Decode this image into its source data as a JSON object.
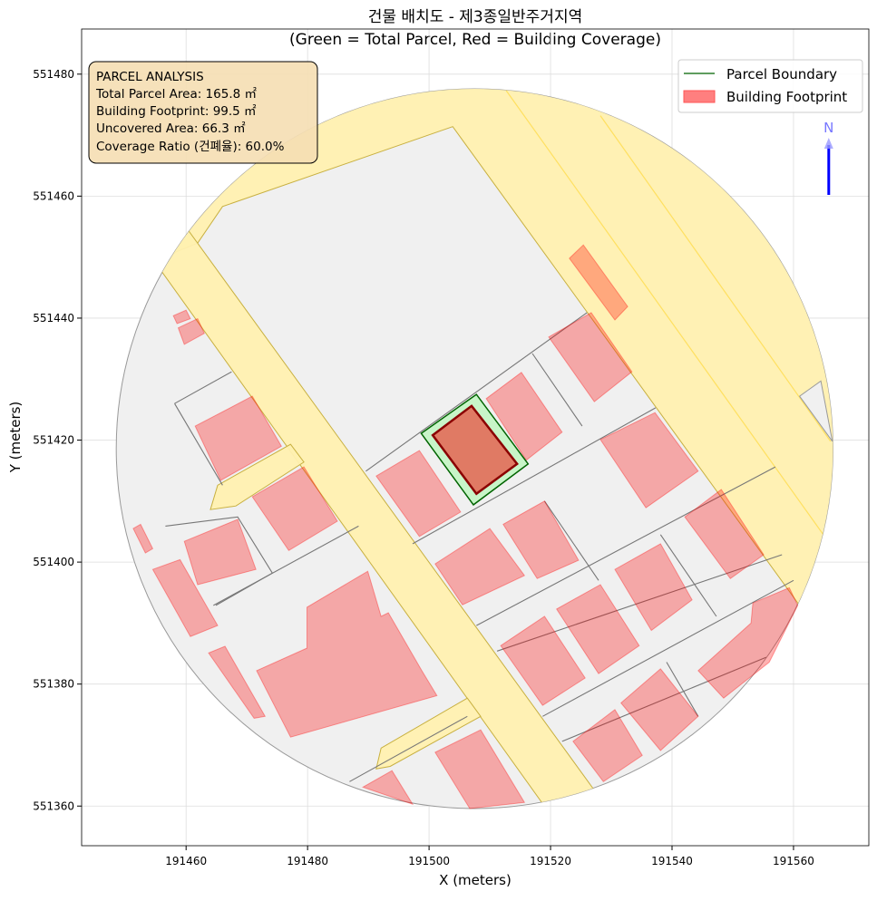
{
  "chart_data": {
    "type": "map",
    "title_line1": "건물 배치도 - 제3종일반주거지역",
    "title_line2": "(Green = Total Parcel, Red = Building Coverage)",
    "xlabel": "X (meters)",
    "ylabel": "Y (meters)",
    "xlim": [
      191442.8,
      191572.4
    ],
    "ylim": [
      551353.5,
      551487.4
    ],
    "xticks": [
      191460,
      191480,
      191500,
      191520,
      191540,
      191560
    ],
    "yticks": [
      551360,
      551380,
      551400,
      551420,
      551440,
      551460,
      551480
    ],
    "grid": true,
    "legend_position": "top-right",
    "legend": [
      {
        "label": "Parcel Boundary",
        "color": "#006400",
        "kind": "line"
      },
      {
        "label": "Building Footprint",
        "color": "#ff7f7f",
        "kind": "patch"
      }
    ],
    "north_arrow": {
      "label": "N",
      "color": "#0000ff",
      "x": 191565.8
    },
    "colors": {
      "area": "#f0f0f0",
      "road": "#fff0b0",
      "road_edge": "#c8b040",
      "road_line": "#ffe060",
      "building": "#ff0000",
      "parcel": "#006400",
      "parcel_fill": "#c8f5c8",
      "target": "#8b0000"
    },
    "analysis_box": {
      "title": "PARCEL ANALYSIS",
      "lines": [
        "Total Parcel Area: 165.8 ㎡",
        "Building Footprint: 99.5 ㎡",
        "Uncovered Area: 66.3 ㎡",
        "Coverage Ratio (건폐율): 60.0%"
      ],
      "total_parcel_area_m2": 165.8,
      "building_footprint_m2": 99.5,
      "uncovered_area_m2": 66.3,
      "coverage_ratio_pct": 60.0
    },
    "study_area": {
      "center": [
        191507.5,
        551418.6
      ],
      "radius": 59
    },
    "roads": [
      [
        [
          191450.3,
          551447.6
        ],
        [
          191461.9,
          551452.3
        ],
        [
          191466.0,
          551458.3
        ],
        [
          191503.9,
          551471.4
        ],
        [
          191560.7,
          551393.3
        ],
        [
          191578.7,
          551368.8
        ],
        [
          191578.7,
          551499.6
        ],
        [
          191444.3,
          551499.6
        ]
      ],
      [
        [
          191443.5,
          551465.0
        ],
        [
          191449.0,
          551470.0
        ],
        [
          191539.3,
          551346.0
        ],
        [
          191531.2,
          551343.0
        ]
      ],
      [
        [
          191464.0,
          551408.6
        ],
        [
          191465.2,
          551412.6
        ],
        [
          191477.2,
          551419.3
        ],
        [
          191479.4,
          551416.4
        ],
        [
          191468.2,
          551409.2
        ]
      ],
      [
        [
          191491.3,
          551366.1
        ],
        [
          191492.1,
          551369.5
        ],
        [
          191506.3,
          551377.7
        ],
        [
          191508.5,
          551374.7
        ],
        [
          191493.6,
          551366.5
        ]
      ]
    ],
    "road_lines": [
      [
        [
          191512.7,
          551477.3
        ],
        [
          191564.9,
          551404.5
        ]
      ],
      [
        [
          191528.2,
          551473.2
        ],
        [
          191566.1,
          551419.8
        ]
      ]
    ],
    "gray_patches": [
      [
        [
          191561.0,
          551427.2
        ],
        [
          191564.5,
          551429.7
        ],
        [
          191566.4,
          551419.8
        ]
      ]
    ],
    "parcel_lines": [
      [
        [
          191458.1,
          551426.0
        ],
        [
          191467.5,
          551431.2
        ]
      ],
      [
        [
          191458.1,
          551426.0
        ],
        [
          191466.0,
          551412.6
        ]
      ],
      [
        [
          191489.6,
          551414.9
        ],
        [
          191526.0,
          551440.9
        ]
      ],
      [
        [
          191497.3,
          551403.0
        ],
        [
          191537.3,
          551425.3
        ]
      ],
      [
        [
          191507.8,
          551389.6
        ],
        [
          191557.0,
          551415.6
        ]
      ],
      [
        [
          191511.2,
          551385.4
        ],
        [
          191558.1,
          551401.2
        ]
      ],
      [
        [
          191518.7,
          551374.7
        ],
        [
          191560.0,
          551397.0
        ]
      ],
      [
        [
          191521.9,
          551370.6
        ],
        [
          191555.5,
          551384.4
        ]
      ],
      [
        [
          191517.0,
          551434.2
        ],
        [
          191525.2,
          551422.3
        ]
      ],
      [
        [
          191519.0,
          551410.0
        ],
        [
          191527.9,
          551397.0
        ]
      ],
      [
        [
          191538.1,
          551404.5
        ],
        [
          191547.3,
          551391.1
        ]
      ],
      [
        [
          191539.1,
          551383.6
        ],
        [
          191544.3,
          551374.7
        ]
      ],
      [
        [
          191456.6,
          551405.9
        ],
        [
          191468.5,
          551407.4
        ],
        [
          191474.2,
          551398.2
        ],
        [
          191464.9,
          551392.9
        ]
      ],
      [
        [
          191464.5,
          551392.9
        ],
        [
          191488.4,
          551405.9
        ]
      ],
      [
        [
          191486.9,
          551364.0
        ],
        [
          191506.3,
          551374.7
        ]
      ]
    ],
    "buildings": [
      [
        [
          191461.5,
          551422.3
        ],
        [
          191470.9,
          551427.2
        ],
        [
          191475.7,
          551419.0
        ],
        [
          191465.7,
          551413.4
        ]
      ],
      [
        [
          191470.9,
          551410.7
        ],
        [
          191479.4,
          551415.6
        ],
        [
          191484.9,
          551406.7
        ],
        [
          191476.9,
          551401.9
        ]
      ],
      [
        [
          191491.3,
          551414.1
        ],
        [
          191498.4,
          551418.3
        ],
        [
          191505.2,
          551408.2
        ],
        [
          191498.4,
          551404.2
        ]
      ],
      [
        [
          191509.4,
          551426.8
        ],
        [
          191515.2,
          551431.1
        ],
        [
          191521.9,
          551421.3
        ],
        [
          191516.0,
          551416.7
        ]
      ],
      [
        [
          191519.7,
          551436.9
        ],
        [
          191526.7,
          551440.9
        ],
        [
          191533.4,
          551431.2
        ],
        [
          191527.2,
          551426.3
        ]
      ],
      [
        [
          191528.2,
          551420.1
        ],
        [
          191537.2,
          551424.5
        ],
        [
          191544.3,
          551414.9
        ],
        [
          191535.7,
          551408.9
        ]
      ],
      [
        [
          191542.1,
          551407.4
        ],
        [
          191548.1,
          551411.9
        ],
        [
          191555.1,
          551401.2
        ],
        [
          191549.6,
          551397.3
        ]
      ],
      [
        [
          191501.0,
          551399.7
        ],
        [
          191510.0,
          551405.5
        ],
        [
          191515.7,
          551397.8
        ],
        [
          191505.5,
          551393.0
        ]
      ],
      [
        [
          191512.2,
          551406.2
        ],
        [
          191519.0,
          551410.0
        ],
        [
          191524.6,
          551400.3
        ],
        [
          191517.8,
          551397.3
        ]
      ],
      [
        [
          191530.6,
          551398.8
        ],
        [
          191538.1,
          551403.0
        ],
        [
          191543.3,
          551393.8
        ],
        [
          191536.6,
          551388.8
        ]
      ],
      [
        [
          191521.0,
          551392.3
        ],
        [
          191528.2,
          551396.3
        ],
        [
          191534.6,
          551386.3
        ],
        [
          191527.9,
          551381.7
        ]
      ],
      [
        [
          191511.8,
          551386.3
        ],
        [
          191519.0,
          551391.1
        ],
        [
          191525.7,
          551381.0
        ],
        [
          191518.7,
          551376.5
        ]
      ],
      [
        [
          191544.3,
          551382.2
        ],
        [
          191553.0,
          551390.0
        ],
        [
          191553.3,
          551393.3
        ],
        [
          191559.3,
          551395.8
        ],
        [
          191560.7,
          551392.9
        ],
        [
          191556.0,
          551383.6
        ],
        [
          191548.5,
          551377.7
        ]
      ],
      [
        [
          191531.6,
          551376.9
        ],
        [
          191538.1,
          551382.5
        ],
        [
          191544.3,
          551374.7
        ],
        [
          191538.1,
          551369.1
        ]
      ],
      [
        [
          191523.7,
          551370.6
        ],
        [
          191530.6,
          551375.8
        ],
        [
          191535.1,
          551368.3
        ],
        [
          191528.7,
          551364.0
        ]
      ],
      [
        [
          191501.0,
          551368.8
        ],
        [
          191508.5,
          551372.5
        ],
        [
          191515.7,
          551360.6
        ],
        [
          191506.7,
          551359.6
        ]
      ],
      [
        [
          191489.1,
          551363.1
        ],
        [
          191493.9,
          551365.8
        ],
        [
          191497.3,
          551360.3
        ]
      ],
      [
        [
          191471.6,
          551382.2
        ],
        [
          191479.9,
          551385.9
        ],
        [
          191479.9,
          551392.6
        ],
        [
          191489.9,
          551398.5
        ],
        [
          191492.1,
          551391.1
        ],
        [
          191493.3,
          551391.7
        ],
        [
          191498.8,
          551382.2
        ],
        [
          191501.3,
          551378.1
        ],
        [
          191477.2,
          551371.3
        ]
      ],
      [
        [
          191454.5,
          551398.8
        ],
        [
          191459.0,
          551400.4
        ],
        [
          191465.2,
          551389.6
        ],
        [
          191460.7,
          551387.8
        ]
      ],
      [
        [
          191459.7,
          551403.4
        ],
        [
          191468.5,
          551407.0
        ],
        [
          191471.5,
          551398.8
        ],
        [
          191461.9,
          551396.3
        ]
      ],
      [
        [
          191463.7,
          551385.1
        ],
        [
          191466.4,
          551386.2
        ],
        [
          191473.0,
          551374.7
        ],
        [
          191471.2,
          551374.4
        ]
      ],
      [
        [
          191523.1,
          551449.8
        ],
        [
          191525.4,
          551452.0
        ],
        [
          191532.7,
          551441.9
        ],
        [
          191530.6,
          551439.7
        ]
      ],
      [
        [
          191458.7,
          551438.4
        ],
        [
          191461.9,
          551439.9
        ],
        [
          191463.0,
          551437.5
        ],
        [
          191459.7,
          551435.7
        ]
      ],
      [
        [
          191457.9,
          551440.4
        ],
        [
          191460.0,
          551441.3
        ],
        [
          191460.7,
          551439.9
        ],
        [
          191458.5,
          551439.1
        ]
      ],
      [
        [
          191451.3,
          551405.5
        ],
        [
          191452.5,
          551406.2
        ],
        [
          191454.5,
          551402.2
        ],
        [
          191453.3,
          551401.5
        ]
      ]
    ],
    "target_parcel": [
      [
        191498.7,
        551421.1
      ],
      [
        191507.8,
        551427.5
      ],
      [
        191516.3,
        551416.1
      ],
      [
        191507.3,
        551409.4
      ]
    ],
    "target_building": [
      [
        191500.6,
        551420.8
      ],
      [
        191507.0,
        551425.6
      ],
      [
        191514.5,
        551416.1
      ],
      [
        191507.8,
        551411.2
      ]
    ]
  }
}
